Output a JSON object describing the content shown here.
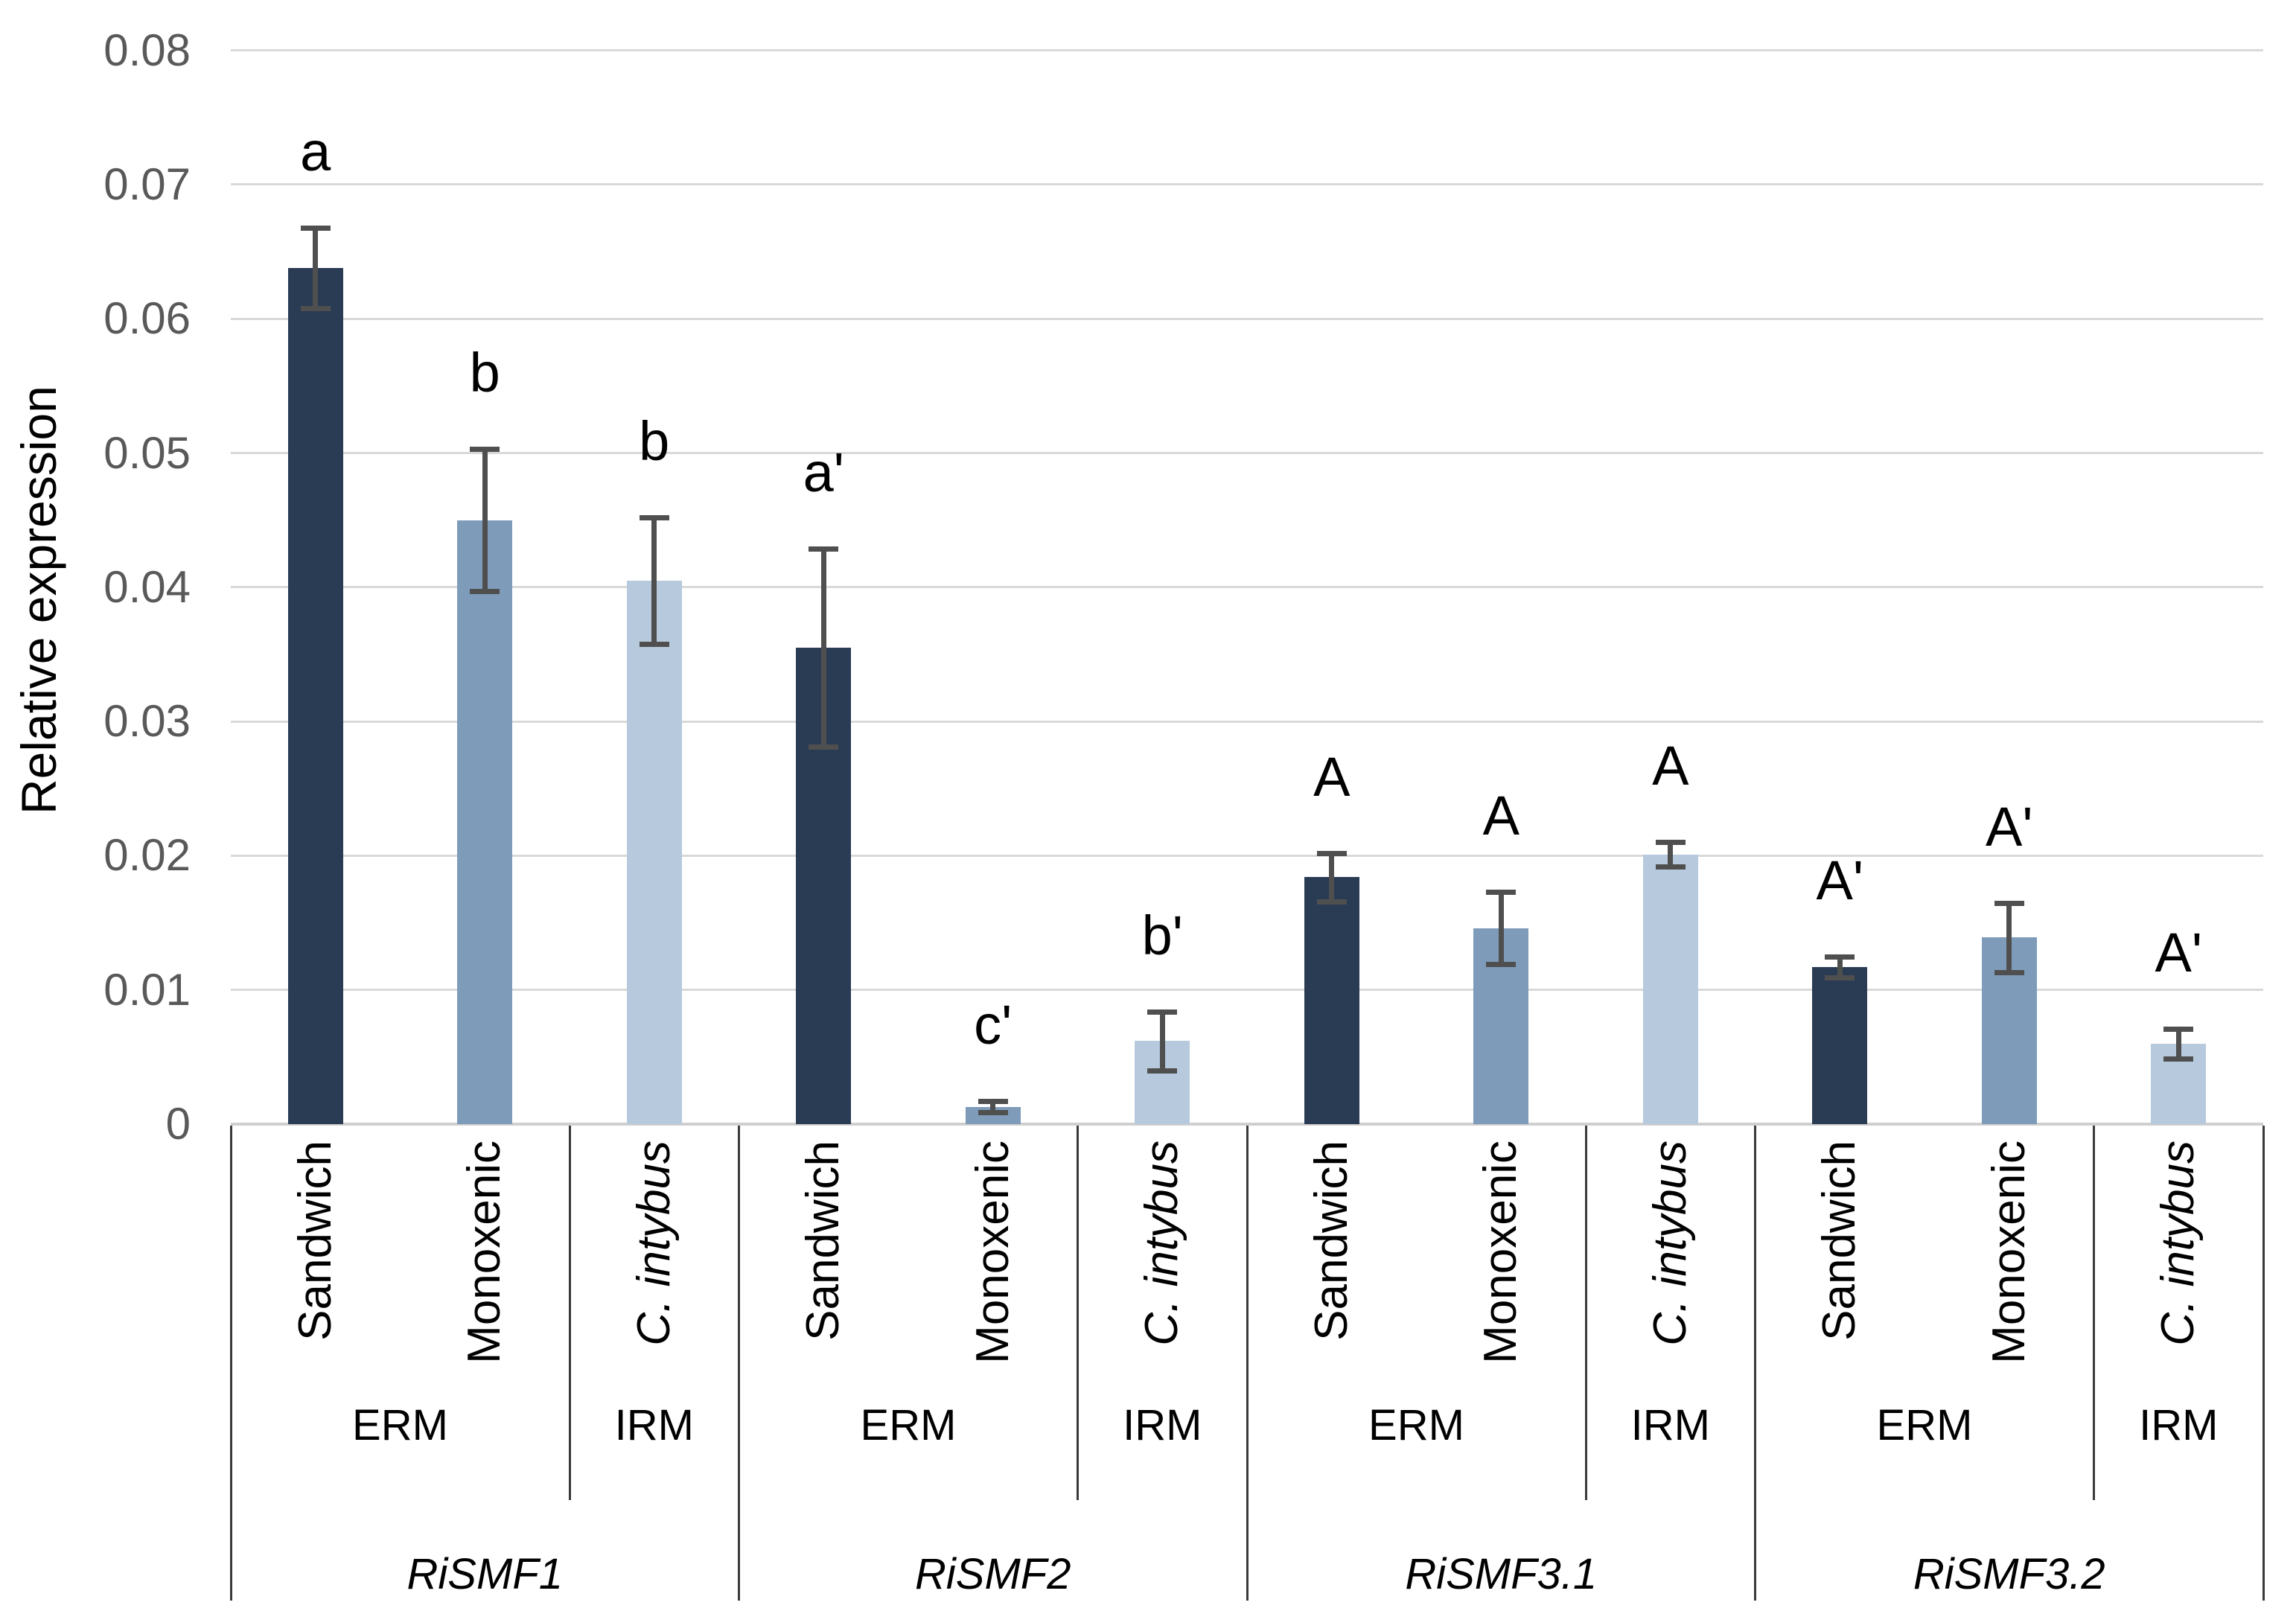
{
  "chart_data": {
    "type": "bar",
    "title": "",
    "xlabel": "",
    "ylabel": "Relative expression",
    "ylim": [
      0,
      0.08
    ],
    "ytick_step": 0.01,
    "ytick_labels": [
      "0",
      "0.01",
      "0.02",
      "0.03",
      "0.04",
      "0.05",
      "0.06",
      "0.07",
      "0.08"
    ],
    "grid": true,
    "legend_position": "none",
    "groups": [
      {
        "gene": "RiSMF1",
        "media": [
          {
            "label": "ERM",
            "treatments": [
              "Sandwich",
              "Monoxenic"
            ]
          },
          {
            "label": "IRM",
            "treatments": [
              "C. intybus"
            ]
          }
        ]
      },
      {
        "gene": "RiSMF2",
        "media": [
          {
            "label": "ERM",
            "treatments": [
              "Sandwich",
              "Monoxenic"
            ]
          },
          {
            "label": "IRM",
            "treatments": [
              "C. intybus"
            ]
          }
        ]
      },
      {
        "gene": "RiSMF3.1",
        "media": [
          {
            "label": "ERM",
            "treatments": [
              "Sandwich",
              "Monoxenic"
            ]
          },
          {
            "label": "IRM",
            "treatments": [
              "C. intybus"
            ]
          }
        ]
      },
      {
        "gene": "RiSMF3.2",
        "media": [
          {
            "label": "ERM",
            "treatments": [
              "Sandwich",
              "Monoxenic"
            ]
          },
          {
            "label": "IRM",
            "treatments": [
              "C. intybus"
            ]
          }
        ]
      }
    ],
    "bars": [
      {
        "gene": "RiSMF1",
        "medium": "ERM",
        "treatment": "Sandwich",
        "value": 0.0638,
        "error": 0.003,
        "letter": "a",
        "color_key": "sandwich"
      },
      {
        "gene": "RiSMF1",
        "medium": "ERM",
        "treatment": "Monoxenic",
        "value": 0.045,
        "error": 0.0053,
        "letter": "b",
        "color_key": "monoxenic"
      },
      {
        "gene": "RiSMF1",
        "medium": "IRM",
        "treatment": "C. intybus",
        "value": 0.0405,
        "error": 0.0047,
        "letter": "b",
        "color_key": "intybus"
      },
      {
        "gene": "RiSMF2",
        "medium": "ERM",
        "treatment": "Sandwich",
        "value": 0.0355,
        "error": 0.0074,
        "letter": "a'",
        "color_key": "sandwich"
      },
      {
        "gene": "RiSMF2",
        "medium": "ERM",
        "treatment": "Monoxenic",
        "value": 0.0013,
        "error": 0.0004,
        "letter": "c'",
        "color_key": "monoxenic"
      },
      {
        "gene": "RiSMF2",
        "medium": "IRM",
        "treatment": "C. intybus",
        "value": 0.0062,
        "error": 0.0022,
        "letter": "b'",
        "color_key": "intybus"
      },
      {
        "gene": "RiSMF3.1",
        "medium": "ERM",
        "treatment": "Sandwich",
        "value": 0.0184,
        "error": 0.0018,
        "letter": "A",
        "color_key": "sandwich"
      },
      {
        "gene": "RiSMF3.1",
        "medium": "ERM",
        "treatment": "Monoxenic",
        "value": 0.0146,
        "error": 0.0027,
        "letter": "A",
        "color_key": "monoxenic"
      },
      {
        "gene": "RiSMF3.1",
        "medium": "IRM",
        "treatment": "C. intybus",
        "value": 0.0201,
        "error": 0.0009,
        "letter": "A",
        "color_key": "intybus"
      },
      {
        "gene": "RiSMF3.2",
        "medium": "ERM",
        "treatment": "Sandwich",
        "value": 0.0117,
        "error": 0.0008,
        "letter": "A'",
        "color_key": "sandwich"
      },
      {
        "gene": "RiSMF3.2",
        "medium": "ERM",
        "treatment": "Monoxenic",
        "value": 0.0139,
        "error": 0.0026,
        "letter": "A'",
        "color_key": "monoxenic"
      },
      {
        "gene": "RiSMF3.2",
        "medium": "IRM",
        "treatment": "C. intybus",
        "value": 0.006,
        "error": 0.0011,
        "letter": "A'",
        "color_key": "intybus"
      }
    ],
    "italic_treatments": [
      "C. intybus"
    ],
    "colors": {
      "sandwich": "#2a3b54",
      "monoxenic": "#7e9cba",
      "intybus": "#b7c9dc",
      "error_bar": "#4f4f4f",
      "gridline": "#d9d9d9",
      "axis_line": "#cfcfcf",
      "tick_label": "#595959",
      "text": "#000000"
    }
  }
}
